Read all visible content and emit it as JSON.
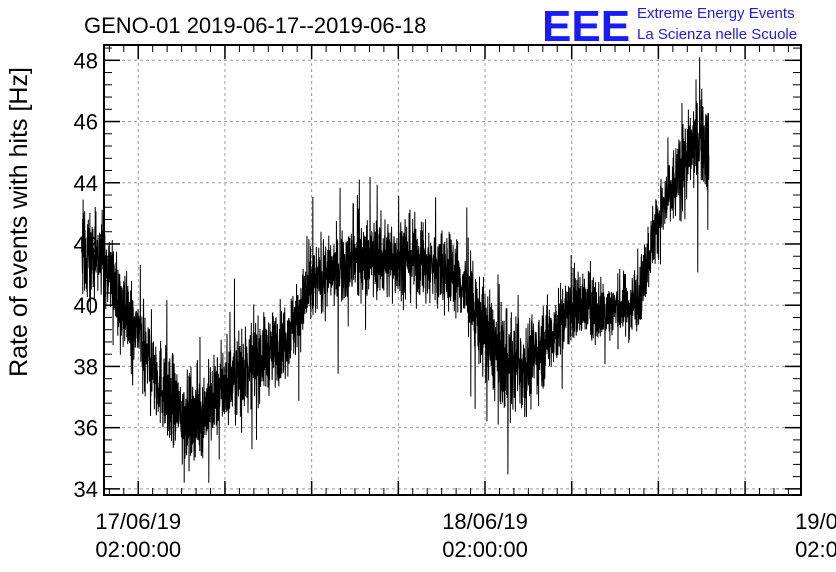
{
  "header": {
    "title": "GENO-01 2019-06-17--2019-06-18",
    "logo_letters": "EEE",
    "logo_line1": "Extreme Energy Events",
    "logo_line2": "La Scienza nelle Scuole"
  },
  "colors": {
    "logo": "#1a1aff",
    "series": "#000000",
    "grid": "#9a9a9a"
  },
  "chart_data": {
    "type": "line",
    "title": "GENO-01 2019-06-17--2019-06-18",
    "xlabel": "",
    "ylabel": "Rate of events with hits [Hz]",
    "x_unit": "hours since 17/06/19 02:00:00",
    "xlim": [
      -2.37,
      45.87
    ],
    "ylim": [
      33.8,
      48.5
    ],
    "grid": true,
    "legend": "none",
    "x_ticks": [
      {
        "x": 0,
        "date": "17/06/19",
        "time": "02:00:00"
      },
      {
        "x": 24,
        "date": "18/06/19",
        "time": "02:00:00"
      },
      {
        "x": 48,
        "date": "19/06/1",
        "time": "02:00:0"
      }
    ],
    "y_ticks": [
      34,
      36,
      38,
      40,
      42,
      44,
      46,
      48
    ],
    "series": [
      {
        "points": [
          [
            -3.9,
            41.5
          ],
          [
            -3.5,
            41.8
          ],
          [
            -3.0,
            41.6
          ],
          [
            -2.5,
            41.4
          ],
          [
            -2.0,
            40.9
          ],
          [
            -1.5,
            40.4
          ],
          [
            -1.0,
            39.8
          ],
          [
            -0.5,
            39.3
          ],
          [
            0.0,
            39.0
          ],
          [
            0.5,
            38.5
          ],
          [
            1.0,
            38.0
          ],
          [
            1.5,
            37.5
          ],
          [
            2.0,
            37.0
          ],
          [
            2.5,
            36.7
          ],
          [
            3.0,
            36.4
          ],
          [
            3.5,
            36.3
          ],
          [
            4.0,
            36.3
          ],
          [
            4.5,
            36.5
          ],
          [
            5.0,
            36.8
          ],
          [
            5.5,
            37.1
          ],
          [
            6.0,
            37.3
          ],
          [
            6.5,
            37.6
          ],
          [
            7.0,
            37.8
          ],
          [
            7.5,
            38.0
          ],
          [
            8.0,
            38.2
          ],
          [
            8.5,
            38.3
          ],
          [
            9.0,
            38.4
          ],
          [
            9.5,
            38.6
          ],
          [
            10.0,
            38.8
          ],
          [
            10.5,
            39.2
          ],
          [
            11.0,
            39.6
          ],
          [
            11.5,
            40.1
          ],
          [
            12.0,
            40.6
          ],
          [
            12.5,
            40.9
          ],
          [
            13.0,
            41.0
          ],
          [
            13.5,
            41.1
          ],
          [
            14.0,
            41.2
          ],
          [
            14.5,
            41.3
          ],
          [
            15.0,
            41.4
          ],
          [
            15.5,
            41.5
          ],
          [
            16.0,
            41.6
          ],
          [
            16.5,
            41.5
          ],
          [
            17.0,
            41.5
          ],
          [
            17.5,
            41.5
          ],
          [
            18.0,
            41.6
          ],
          [
            18.5,
            41.6
          ],
          [
            19.0,
            41.5
          ],
          [
            19.5,
            41.4
          ],
          [
            20.0,
            41.3
          ],
          [
            20.5,
            41.3
          ],
          [
            21.0,
            41.2
          ],
          [
            21.5,
            41.1
          ],
          [
            22.0,
            41.0
          ],
          [
            22.5,
            40.6
          ],
          [
            23.0,
            40.1
          ],
          [
            23.5,
            39.6
          ],
          [
            24.0,
            39.1
          ],
          [
            24.5,
            38.7
          ],
          [
            25.0,
            38.3
          ],
          [
            25.5,
            38.1
          ],
          [
            26.0,
            38.0
          ],
          [
            26.5,
            38.0
          ],
          [
            27.0,
            38.1
          ],
          [
            27.5,
            38.4
          ],
          [
            28.0,
            38.7
          ],
          [
            28.5,
            39.0
          ],
          [
            29.0,
            39.3
          ],
          [
            29.5,
            39.6
          ],
          [
            30.0,
            39.9
          ],
          [
            30.5,
            40.0
          ],
          [
            31.0,
            40.0
          ],
          [
            31.5,
            39.9
          ],
          [
            32.0,
            39.8
          ],
          [
            32.5,
            39.8
          ],
          [
            33.0,
            39.9
          ],
          [
            33.5,
            40.0
          ],
          [
            34.0,
            39.9
          ],
          [
            34.5,
            40.3
          ],
          [
            35.0,
            41.0
          ],
          [
            35.5,
            42.0
          ],
          [
            36.0,
            42.8
          ],
          [
            36.5,
            43.3
          ],
          [
            37.0,
            43.8
          ],
          [
            37.5,
            44.3
          ],
          [
            38.0,
            44.8
          ],
          [
            38.5,
            45.3
          ],
          [
            39.0,
            45.5
          ],
          [
            39.5,
            45.0
          ]
        ],
        "noise_band": [
          [
            -3.9,
            1.3
          ],
          [
            -1.0,
            1.2
          ],
          [
            2.0,
            1.3
          ],
          [
            5.0,
            1.2
          ],
          [
            10.0,
            1.1
          ],
          [
            13.0,
            1.0
          ],
          [
            18.0,
            1.2
          ],
          [
            22.0,
            1.1
          ],
          [
            25.0,
            1.5
          ],
          [
            29.0,
            1.1
          ],
          [
            33.0,
            0.9
          ],
          [
            36.0,
            1.0
          ],
          [
            39.5,
            1.4
          ]
        ]
      }
    ]
  }
}
